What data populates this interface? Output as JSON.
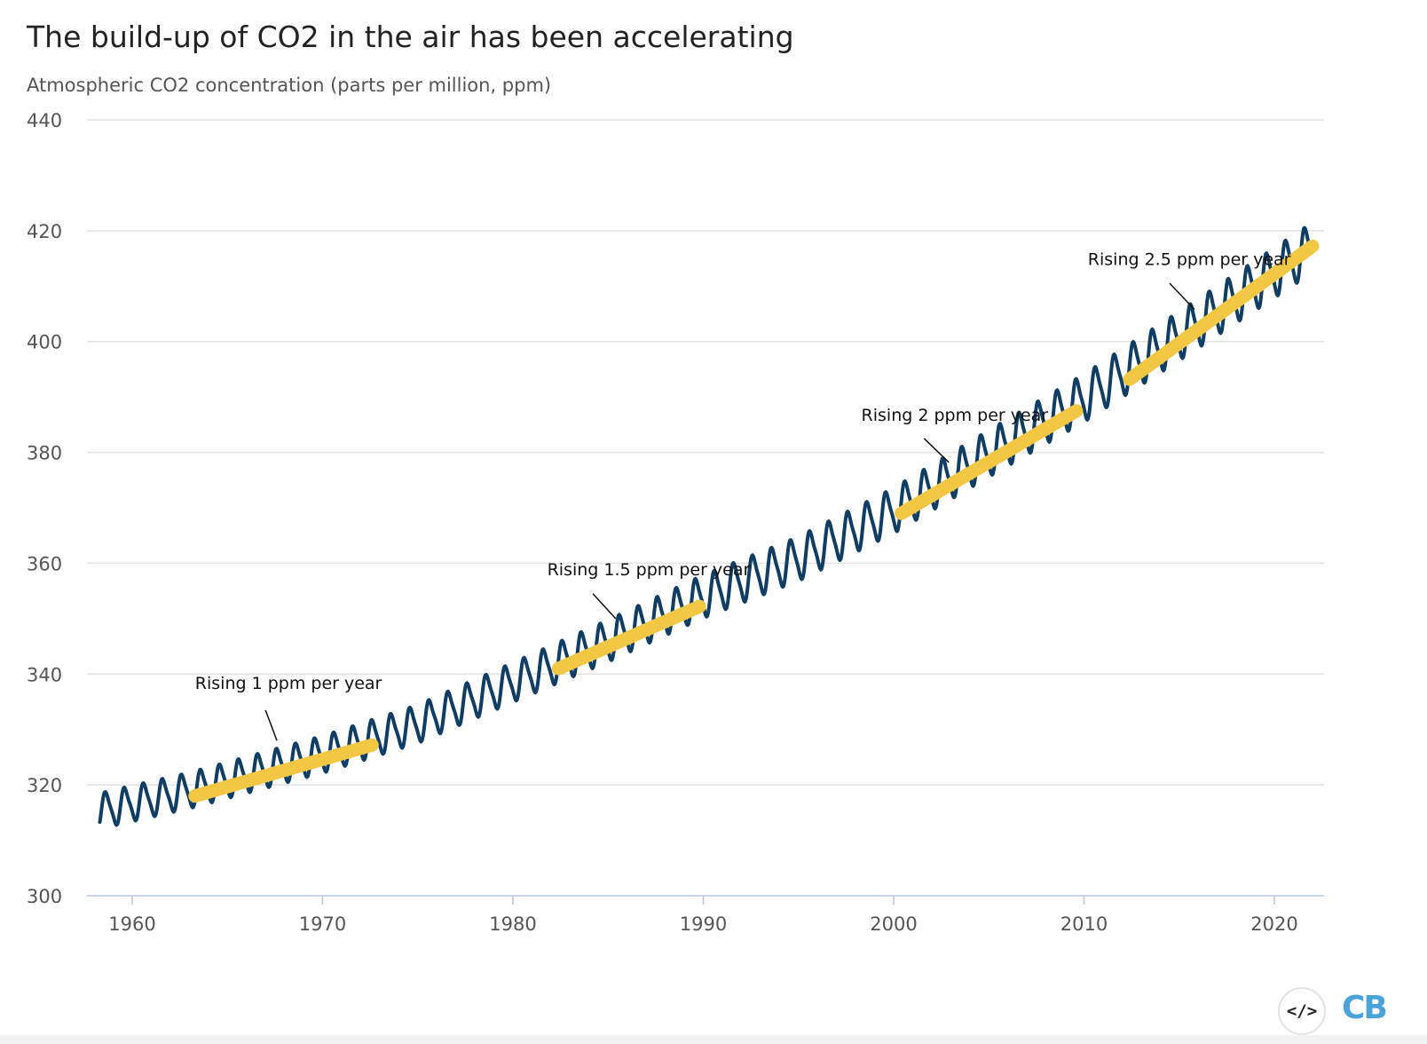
{
  "chart_data": {
    "type": "line",
    "title": "The build-up of CO2 in the air has been accelerating",
    "subtitle": "Atmospheric CO2 concentration (parts per million, ppm)",
    "xlabel": "",
    "ylabel": "",
    "xlim": [
      1957.8,
      2022.3
    ],
    "ylim": [
      300,
      440
    ],
    "y_ticks": [
      300,
      320,
      340,
      360,
      380,
      400,
      420,
      440
    ],
    "x_ticks": [
      1960,
      1970,
      1980,
      1990,
      2000,
      2010,
      2020
    ],
    "grid": "horizontal",
    "series": [
      {
        "color": "#0f3d63",
        "x": [
          1958.3,
          1963,
          1970,
          1975,
          1980,
          1985,
          1990,
          1995,
          2000,
          2005,
          2010,
          2015,
          2021.8
        ],
        "y": [
          315.3,
          319.0,
          325.5,
          331.0,
          338.5,
          346.0,
          354.0,
          360.8,
          369.5,
          379.8,
          389.8,
          401.0,
          416.5
        ],
        "seasonal_amplitude": [
          6.0,
          6.0,
          6.2,
          6.4,
          6.6,
          7.0,
          7.2,
          7.4,
          7.6,
          7.8,
          8.0,
          8.2,
          8.4
        ]
      }
    ],
    "trend_lines": [
      {
        "x": [
          1963.3,
          1972.6
        ],
        "y": [
          318.0,
          327.2
        ],
        "color": "#f2c744"
      },
      {
        "x": [
          1982.4,
          1989.8
        ],
        "y": [
          341.0,
          352.2
        ],
        "color": "#f2c744"
      },
      {
        "x": [
          2000.4,
          2009.6
        ],
        "y": [
          369.0,
          387.5
        ],
        "color": "#f2c744"
      },
      {
        "x": [
          2012.4,
          2022.0
        ],
        "y": [
          393.2,
          417.2
        ],
        "color": "#f2c744"
      }
    ],
    "annotations": [
      {
        "text": "Rising 1 ppm per year",
        "x": 1963.3,
        "y": 337.3,
        "pointer_from": [
          1967.0,
          333.5
        ],
        "pointer_to": [
          1967.6,
          328.0
        ]
      },
      {
        "text": "Rising 1.5 ppm per year",
        "x": 1981.8,
        "y": 357.8,
        "pointer_from": [
          1984.2,
          354.5
        ],
        "pointer_to": [
          1985.4,
          350.0
        ]
      },
      {
        "text": "Rising 2 ppm per year",
        "x": 1998.3,
        "y": 385.7,
        "pointer_from": [
          2001.6,
          382.5
        ],
        "pointer_to": [
          2002.9,
          378.2
        ]
      },
      {
        "text": "Rising 2.5 ppm per year",
        "x": 2010.2,
        "y": 413.8,
        "pointer_from": [
          2014.5,
          410.5
        ],
        "pointer_to": [
          2015.8,
          405.8
        ]
      }
    ]
  },
  "footer": {
    "embed_icon": "</>",
    "logo": "CB"
  }
}
